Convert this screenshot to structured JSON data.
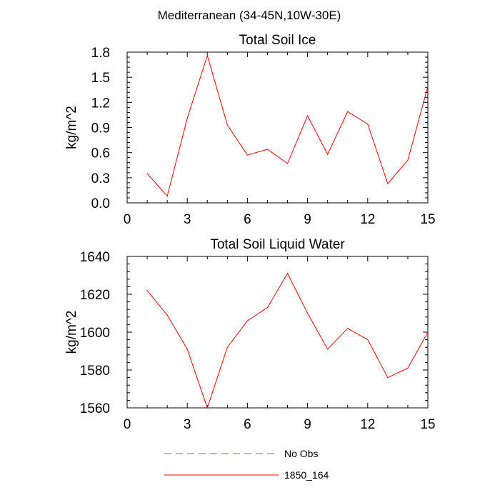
{
  "figure_title": "Mediterranean (34-45N,10W-30E)",
  "chart_data": [
    {
      "type": "line",
      "title": "Total Soil Ice",
      "xlabel": "",
      "ylabel": "kg/m^2",
      "xlim": [
        0,
        15
      ],
      "ylim": [
        0,
        1.8
      ],
      "x_ticks": [
        "0",
        "3",
        "6",
        "9",
        "12",
        "15"
      ],
      "y_ticks": [
        "0.0",
        "0.3",
        "0.6",
        "0.9",
        "1.2",
        "1.5",
        "1.8"
      ],
      "x": [
        1,
        2,
        3,
        4,
        5,
        6,
        7,
        8,
        9,
        10,
        11,
        12,
        13,
        14,
        15
      ],
      "series": [
        {
          "name": "1850_164",
          "color": "#ff0000",
          "values": [
            0.35,
            0.08,
            1.01,
            1.76,
            0.93,
            0.57,
            0.64,
            0.47,
            1.04,
            0.58,
            1.09,
            0.94,
            0.23,
            0.51,
            1.39
          ]
        }
      ]
    },
    {
      "type": "line",
      "title": "Total Soil Liquid Water",
      "xlabel": "",
      "ylabel": "kg/m^2",
      "xlim": [
        0,
        15
      ],
      "ylim": [
        1560,
        1640
      ],
      "x_ticks": [
        "0",
        "3",
        "6",
        "9",
        "12",
        "15"
      ],
      "y_ticks": [
        "1560",
        "1580",
        "1600",
        "1620",
        "1640"
      ],
      "x": [
        1,
        2,
        3,
        4,
        5,
        6,
        7,
        8,
        9,
        10,
        11,
        12,
        13,
        14,
        15
      ],
      "series": [
        {
          "name": "1850_164",
          "color": "#ff0000",
          "values": [
            1622,
            1609,
            1591,
            1560,
            1592,
            1606,
            1613,
            1631,
            1610,
            1591,
            1602,
            1596,
            1576,
            1581,
            1600
          ]
        }
      ]
    }
  ],
  "legend": [
    {
      "label": "No Obs",
      "color": "#6a6aa8",
      "style": "dashed"
    },
    {
      "label": "1850_164",
      "color": "#ff0000",
      "style": "solid"
    }
  ]
}
